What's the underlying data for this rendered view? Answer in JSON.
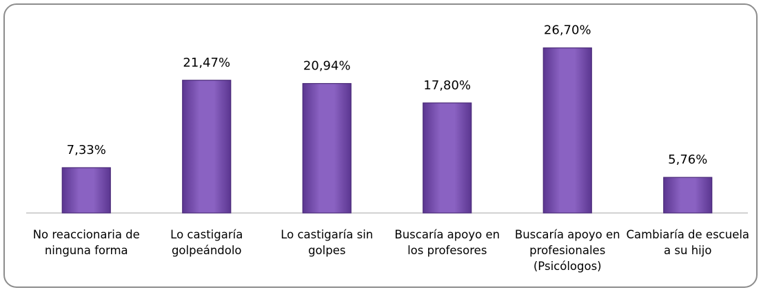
{
  "chart_data": {
    "type": "bar",
    "categories": [
      "No reaccionaria de ninguna forma",
      "Lo castigaría golpeándolo",
      "Lo castigaría sin golpes",
      "Buscaría apoyo en los profesores",
      "Buscaría apoyo en profesionales (Psicólogos)",
      "Cambiaría de escuela a su hijo"
    ],
    "values": [
      7.33,
      21.47,
      20.94,
      17.8,
      26.7,
      5.76
    ],
    "value_labels": [
      "7,33%",
      "21,47%",
      "20,94%",
      "17,80%",
      "26,70%",
      "5,76%"
    ],
    "color": "#7e57b5",
    "ylim": [
      0,
      30
    ]
  }
}
